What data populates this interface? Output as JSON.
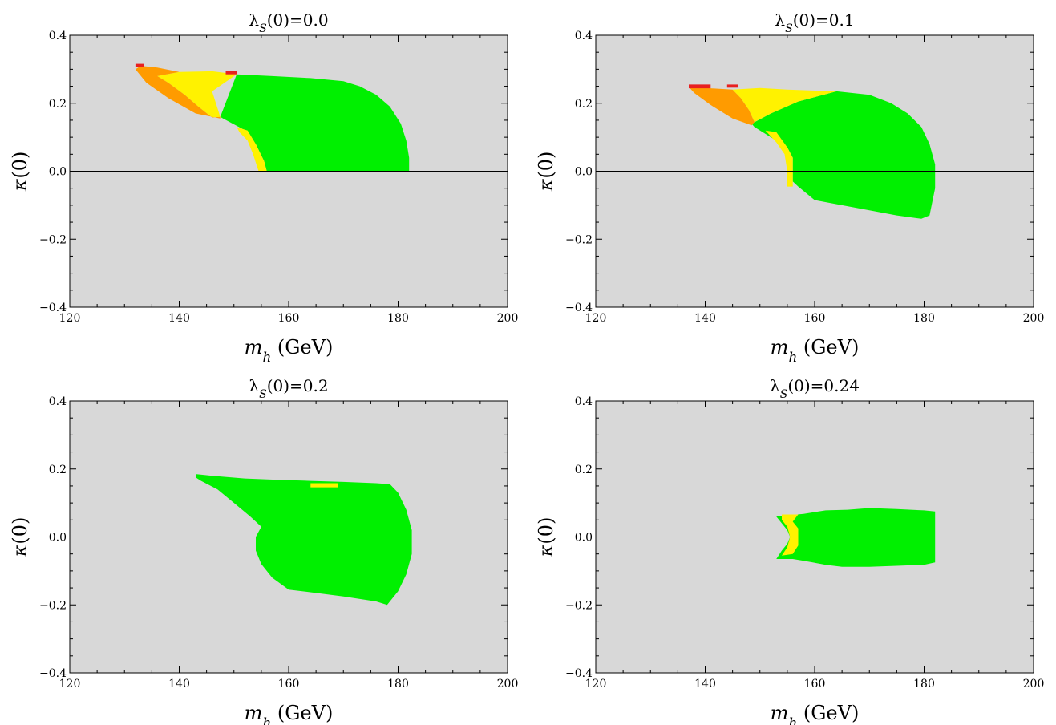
{
  "chart_data": [
    {
      "type": "heatmap",
      "title": "λS(0)=0.0",
      "xlabel": "mh (GeV)",
      "ylabel": "κ(0)",
      "xlim": [
        120,
        200
      ],
      "ylim": [
        -0.4,
        0.4
      ],
      "xticks": [
        "120",
        "140",
        "160",
        "180",
        "200"
      ],
      "yticks": [
        "−0.4",
        "−0.2",
        "0.0",
        "0.2",
        "0.4"
      ],
      "reference_line_y": 0.0,
      "background_color": "#d8d8d8",
      "regions": [
        {
          "color": "#00f000",
          "points": [
            [
              150.5,
              0.285
            ],
            [
              157,
              0.28
            ],
            [
              164,
              0.274
            ],
            [
              170,
              0.265
            ],
            [
              173,
              0.25
            ],
            [
              176,
              0.225
            ],
            [
              178.5,
              0.19
            ],
            [
              180.5,
              0.14
            ],
            [
              181.5,
              0.09
            ],
            [
              182,
              0.04
            ],
            [
              182,
              0.0
            ],
            [
              156,
              0.0
            ],
            [
              155.5,
              0.03
            ],
            [
              154,
              0.08
            ],
            [
              151.5,
              0.125
            ],
            [
              148,
              0.155
            ],
            [
              147.5,
              0.16
            ]
          ]
        },
        {
          "color": "#fff200",
          "points": [
            [
              136,
              0.28
            ],
            [
              140,
              0.292
            ],
            [
              146,
              0.294
            ],
            [
              150.5,
              0.285
            ],
            [
              146,
              0.235
            ],
            [
              147.5,
              0.16
            ],
            [
              146,
              0.158
            ],
            [
              143.5,
              0.19
            ],
            [
              141,
              0.225
            ],
            [
              138,
              0.26
            ]
          ]
        },
        {
          "color": "#fff200",
          "points": [
            [
              150.5,
              0.13
            ],
            [
              152.5,
              0.12
            ],
            [
              154,
              0.08
            ],
            [
              155.5,
              0.03
            ],
            [
              156,
              0.0
            ],
            [
              154.5,
              0.0
            ],
            [
              153.5,
              0.05
            ],
            [
              152.5,
              0.09
            ],
            [
              151,
              0.115
            ]
          ]
        },
        {
          "color": "#ff9b00",
          "points": [
            [
              133,
              0.31
            ],
            [
              136,
              0.305
            ],
            [
              140,
              0.292
            ],
            [
              136,
              0.28
            ],
            [
              138,
              0.26
            ],
            [
              141,
              0.225
            ],
            [
              143.5,
              0.19
            ],
            [
              146,
              0.158
            ],
            [
              147.5,
              0.16
            ],
            [
              147.5,
              0.155
            ],
            [
              143,
              0.17
            ],
            [
              138,
              0.215
            ],
            [
              134,
              0.26
            ],
            [
              132,
              0.3
            ]
          ]
        },
        {
          "color": "#e82020",
          "points": [
            [
              132,
              0.316
            ],
            [
              133.5,
              0.316
            ],
            [
              133.5,
              0.306
            ],
            [
              132,
              0.306
            ]
          ]
        },
        {
          "color": "#e82020",
          "points": [
            [
              148.5,
              0.294
            ],
            [
              150.5,
              0.294
            ],
            [
              150.5,
              0.285
            ],
            [
              148.5,
              0.285
            ]
          ]
        }
      ]
    },
    {
      "type": "heatmap",
      "title": "λS(0)=0.1",
      "xlabel": "mh (GeV)",
      "ylabel": "κ(0)",
      "xlim": [
        120,
        200
      ],
      "ylim": [
        -0.4,
        0.4
      ],
      "xticks": [
        "120",
        "140",
        "160",
        "180",
        "200"
      ],
      "yticks": [
        "−0.4",
        "−0.2",
        "0.0",
        "0.2",
        "0.4"
      ],
      "reference_line_y": 0.0,
      "background_color": "#d8d8d8",
      "regions": [
        {
          "color": "#00f000",
          "points": [
            [
              148.5,
              0.14
            ],
            [
              152,
              0.17
            ],
            [
              157,
              0.205
            ],
            [
              164,
              0.235
            ],
            [
              170,
              0.225
            ],
            [
              174,
              0.2
            ],
            [
              177,
              0.17
            ],
            [
              179.5,
              0.13
            ],
            [
              181,
              0.08
            ],
            [
              182,
              0.02
            ],
            [
              182,
              -0.05
            ],
            [
              181,
              -0.13
            ],
            [
              179.5,
              -0.14
            ],
            [
              175,
              -0.13
            ],
            [
              170,
              -0.115
            ],
            [
              165,
              -0.1
            ],
            [
              160,
              -0.085
            ],
            [
              157,
              -0.045
            ],
            [
              156,
              -0.03
            ],
            [
              156,
              0.04
            ],
            [
              155,
              0.07
            ],
            [
              152,
              0.1
            ],
            [
              149,
              0.13
            ]
          ]
        },
        {
          "color": "#fff200",
          "points": [
            [
              145,
              0.24
            ],
            [
              150,
              0.245
            ],
            [
              155,
              0.24
            ],
            [
              164,
              0.235
            ],
            [
              157,
              0.205
            ],
            [
              152,
              0.17
            ],
            [
              149,
              0.145
            ],
            [
              148,
              0.18
            ],
            [
              146.5,
              0.215
            ]
          ]
        },
        {
          "color": "#fff200",
          "points": [
            [
              151,
              0.12
            ],
            [
              153,
              0.115
            ],
            [
              155,
              0.07
            ],
            [
              156,
              0.04
            ],
            [
              156,
              -0.045
            ],
            [
              155,
              -0.045
            ],
            [
              155,
              0.0
            ],
            [
              154.5,
              0.05
            ],
            [
              153,
              0.085
            ]
          ]
        },
        {
          "color": "#ff9b00",
          "points": [
            [
              137,
              0.248
            ],
            [
              145,
              0.24
            ],
            [
              146.5,
              0.215
            ],
            [
              148,
              0.18
            ],
            [
              149,
              0.145
            ],
            [
              148.5,
              0.135
            ],
            [
              145,
              0.155
            ],
            [
              141,
              0.195
            ],
            [
              138,
              0.23
            ]
          ]
        },
        {
          "color": "#e82020",
          "points": [
            [
              137,
              0.255
            ],
            [
              141,
              0.255
            ],
            [
              141,
              0.244
            ],
            [
              137,
              0.244
            ]
          ]
        },
        {
          "color": "#e82020",
          "points": [
            [
              144,
              0.255
            ],
            [
              146,
              0.255
            ],
            [
              146,
              0.246
            ],
            [
              144,
              0.246
            ]
          ]
        }
      ]
    },
    {
      "type": "heatmap",
      "title": "λS(0)=0.2",
      "xlabel": "mh (GeV)",
      "ylabel": "κ(0)",
      "xlim": [
        120,
        200
      ],
      "ylim": [
        -0.4,
        0.4
      ],
      "xticks": [
        "120",
        "140",
        "160",
        "180",
        "200"
      ],
      "yticks": [
        "−0.4",
        "−0.2",
        "0.0",
        "0.2",
        "0.4"
      ],
      "reference_line_y": 0.0,
      "background_color": "#d8d8d8",
      "regions": [
        {
          "color": "#00f000",
          "points": [
            [
              143,
              0.185
            ],
            [
              146,
              0.18
            ],
            [
              152,
              0.172
            ],
            [
              158,
              0.168
            ],
            [
              164,
              0.165
            ],
            [
              170,
              0.162
            ],
            [
              176,
              0.158
            ],
            [
              178.5,
              0.155
            ],
            [
              180,
              0.13
            ],
            [
              181.5,
              0.08
            ],
            [
              182.5,
              0.02
            ],
            [
              182.5,
              -0.05
            ],
            [
              181.5,
              -0.11
            ],
            [
              180,
              -0.16
            ],
            [
              178,
              -0.2
            ],
            [
              176,
              -0.19
            ],
            [
              170,
              -0.175
            ],
            [
              165,
              -0.165
            ],
            [
              160,
              -0.155
            ],
            [
              157,
              -0.12
            ],
            [
              155,
              -0.08
            ],
            [
              154,
              -0.04
            ],
            [
              154,
              0.0
            ],
            [
              155,
              0.03
            ],
            [
              153,
              0.06
            ],
            [
              150,
              0.1
            ],
            [
              147,
              0.14
            ],
            [
              144,
              0.165
            ],
            [
              143,
              0.175
            ]
          ]
        },
        {
          "color": "#fff200",
          "points": [
            [
              164,
              0.158
            ],
            [
              169,
              0.158
            ],
            [
              169,
              0.146
            ],
            [
              164,
              0.146
            ]
          ]
        }
      ]
    },
    {
      "type": "heatmap",
      "title": "λS(0)=0.24",
      "xlabel": "mh (GeV)",
      "ylabel": "κ(0)",
      "xlim": [
        120,
        200
      ],
      "ylim": [
        -0.4,
        0.4
      ],
      "xticks": [
        "120",
        "140",
        "160",
        "180",
        "200"
      ],
      "yticks": [
        "−0.4",
        "−0.2",
        "0.0",
        "0.2",
        "0.4"
      ],
      "reference_line_y": 0.0,
      "background_color": "#d8d8d8",
      "regions": [
        {
          "color": "#00f000",
          "points": [
            [
              153,
              0.06
            ],
            [
              156,
              0.065
            ],
            [
              158,
              0.068
            ],
            [
              162,
              0.078
            ],
            [
              166,
              0.08
            ],
            [
              170,
              0.085
            ],
            [
              175,
              0.082
            ],
            [
              180,
              0.078
            ],
            [
              182,
              0.075
            ],
            [
              182,
              -0.075
            ],
            [
              180,
              -0.082
            ],
            [
              175,
              -0.085
            ],
            [
              170,
              -0.088
            ],
            [
              165,
              -0.088
            ],
            [
              162,
              -0.082
            ],
            [
              158,
              -0.07
            ],
            [
              156,
              -0.065
            ],
            [
              153,
              -0.065
            ],
            [
              154,
              -0.04
            ],
            [
              155,
              -0.02
            ],
            [
              155.5,
              0.0
            ],
            [
              155,
              0.02
            ],
            [
              154,
              0.04
            ]
          ]
        },
        {
          "color": "#fff200",
          "points": [
            [
              154,
              0.066
            ],
            [
              157,
              0.066
            ],
            [
              156,
              0.045
            ],
            [
              157,
              0.025
            ],
            [
              157,
              -0.025
            ],
            [
              156,
              -0.05
            ],
            [
              154,
              -0.055
            ],
            [
              155,
              -0.03
            ],
            [
              155.5,
              0.0
            ],
            [
              155,
              0.03
            ],
            [
              154,
              0.05
            ]
          ]
        }
      ]
    }
  ]
}
